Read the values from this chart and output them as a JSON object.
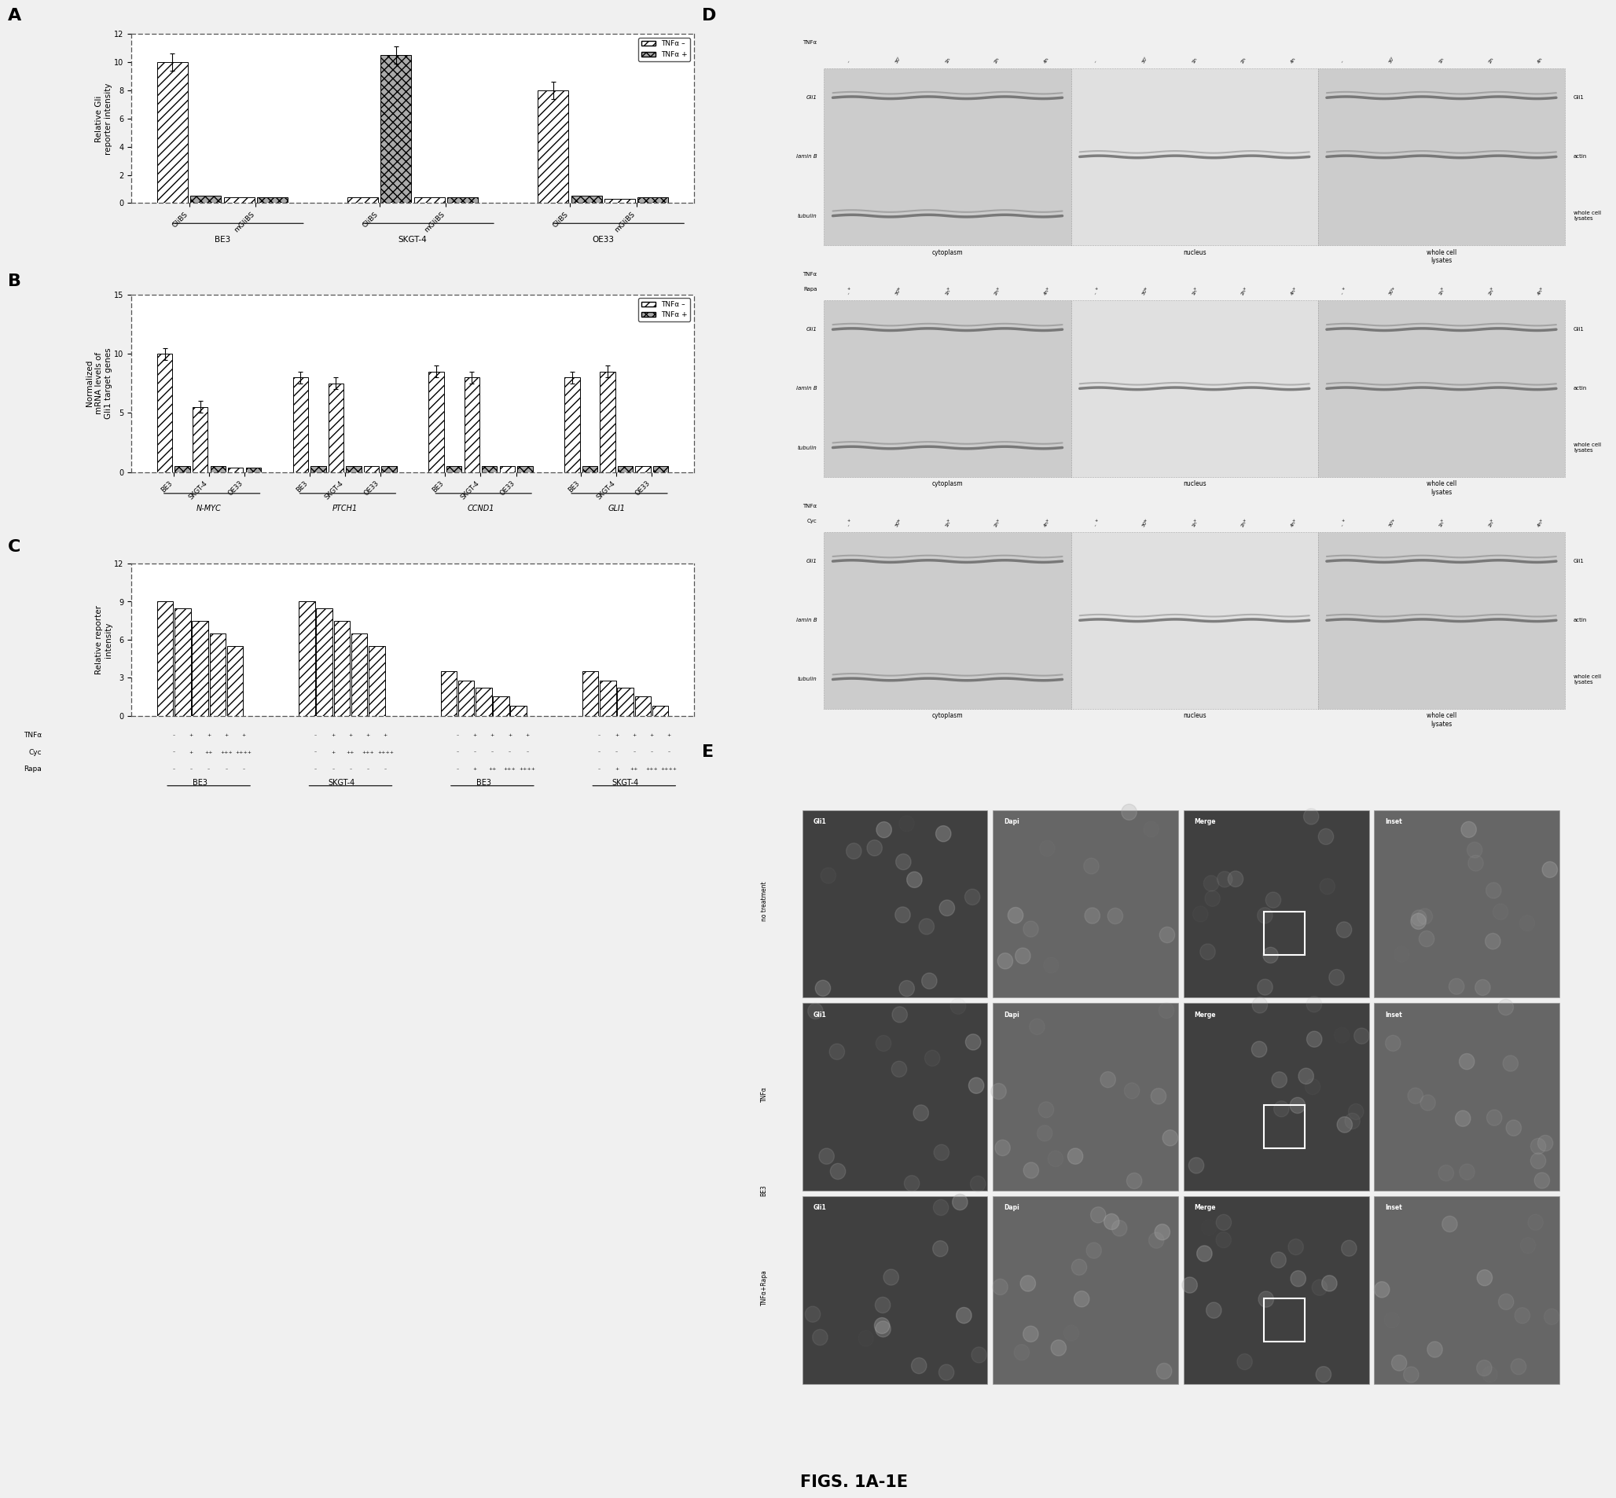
{
  "fig_background": "#f0f0f0",
  "panel_label_fontsize": 16,
  "A": {
    "ylabel": "Relative Gli\nreporter intensity",
    "ylim": [
      0,
      12
    ],
    "yticks": [
      0,
      2,
      4,
      6,
      8,
      10,
      12
    ],
    "groups": [
      "BE3",
      "SKGT-4",
      "OE33"
    ],
    "data_minus": [
      10.0,
      0.4,
      0.4,
      0.4,
      8.0,
      0.3
    ],
    "data_plus": [
      0.5,
      0.4,
      10.5,
      0.4,
      0.5,
      0.4
    ],
    "error_minus": [
      0.6,
      0.1,
      0.1,
      0.1,
      0.6,
      0.1
    ],
    "error_plus": [
      0.2,
      0.1,
      0.6,
      0.1,
      0.2,
      0.1
    ]
  },
  "B": {
    "ylabel": "Normalized\nmRNA levels of\nGli1 target genes",
    "ylim": [
      0,
      15
    ],
    "yticks": [
      0,
      5,
      10,
      15
    ],
    "genes": [
      "N-MYC",
      "PTCH1",
      "CCND1",
      "GLI1"
    ],
    "groups": [
      "BE3",
      "SKGT-4",
      "OE33"
    ],
    "data_minus": [
      10.0,
      5.5,
      0.4,
      8.0,
      7.5,
      0.5,
      8.5,
      8.0,
      0.5,
      8.0,
      8.5,
      0.5
    ],
    "data_plus": [
      0.5,
      0.5,
      0.4,
      0.5,
      0.5,
      0.5,
      0.5,
      0.5,
      0.5,
      0.5,
      0.5,
      0.5
    ],
    "error_minus": [
      0.5,
      0.5,
      0.1,
      0.5,
      0.5,
      0.1,
      0.5,
      0.5,
      0.1,
      0.5,
      0.5,
      0.1
    ],
    "error_plus": [
      0.1,
      0.1,
      0.1,
      0.1,
      0.1,
      0.1,
      0.1,
      0.1,
      0.1,
      0.1,
      0.1,
      0.1
    ]
  },
  "C": {
    "ylabel": "Relative reporter\nintensity",
    "ylim": [
      0,
      12
    ],
    "yticks": [
      0,
      3,
      6,
      9,
      12
    ],
    "groups": [
      "BE3",
      "SKGT-4",
      "BE3",
      "SKGT-4"
    ],
    "data": [
      [
        9.0,
        8.5,
        7.5,
        6.5,
        5.5
      ],
      [
        9.0,
        8.5,
        7.5,
        6.5,
        5.5
      ],
      [
        3.5,
        2.8,
        2.2,
        1.5,
        0.8
      ],
      [
        3.5,
        2.8,
        2.2,
        1.5,
        0.8
      ]
    ]
  },
  "D": {
    "time_labels": [
      "–",
      "30'",
      "1h",
      "2h",
      "4h"
    ],
    "row_labels": [
      "Gli1",
      "lamin B",
      "tubulin"
    ],
    "right_labels": [
      "Gli1",
      "actin",
      "whole cell\nlysates"
    ],
    "col_labels": [
      "cytoplasm",
      "nucleus",
      "whole cell\nlysates"
    ],
    "section_extra": [
      null,
      "Rapa",
      "Cyc"
    ]
  },
  "E": {
    "rows": [
      "no treatment",
      "TNFα",
      "TNFα+Rapa"
    ],
    "cols": [
      "Gli1",
      "Dapi",
      "Merge",
      "Inset"
    ],
    "row_label_x": "BE3"
  },
  "figure_label": "FIGS. 1A-1E",
  "figure_label_fontsize": 15,
  "figure_label_fontweight": "bold"
}
